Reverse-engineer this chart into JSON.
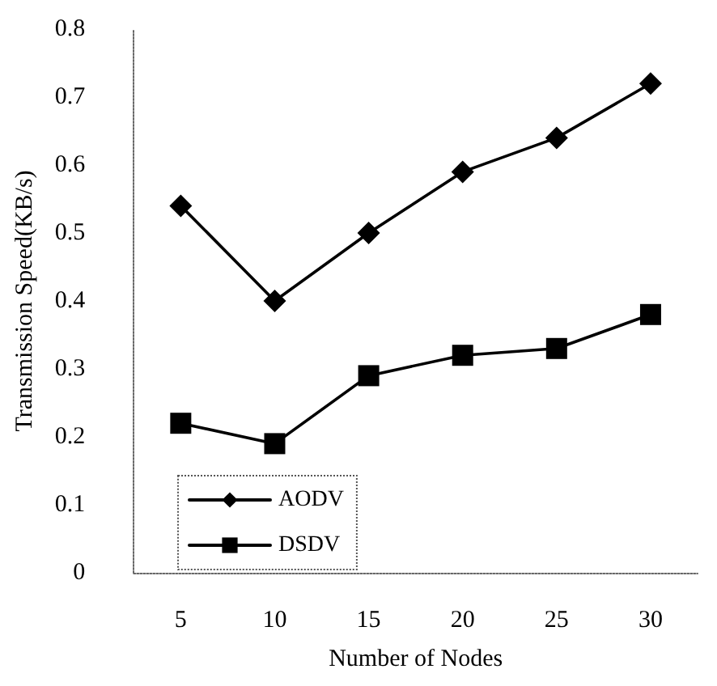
{
  "chart_data": {
    "type": "line",
    "xlabel": "Number of Nodes",
    "ylabel": "Transmission Speed(KB/s)",
    "categories": [
      "5",
      "10",
      "15",
      "20",
      "25",
      "30"
    ],
    "series": [
      {
        "name": "AODV",
        "color": "#000000",
        "marker": "diamond",
        "values": [
          0.54,
          0.4,
          0.5,
          0.59,
          0.64,
          0.72
        ]
      },
      {
        "name": "DSDV",
        "color": "#000000",
        "marker": "square",
        "values": [
          0.22,
          0.19,
          0.29,
          0.32,
          0.33,
          0.38
        ]
      }
    ],
    "ylim": [
      0,
      0.8
    ],
    "yticks": [
      0,
      0.1,
      0.2,
      0.3,
      0.4,
      0.5,
      0.6,
      0.7,
      0.8
    ],
    "grid": false,
    "legend": "bottom left",
    "line_style": "solid"
  }
}
